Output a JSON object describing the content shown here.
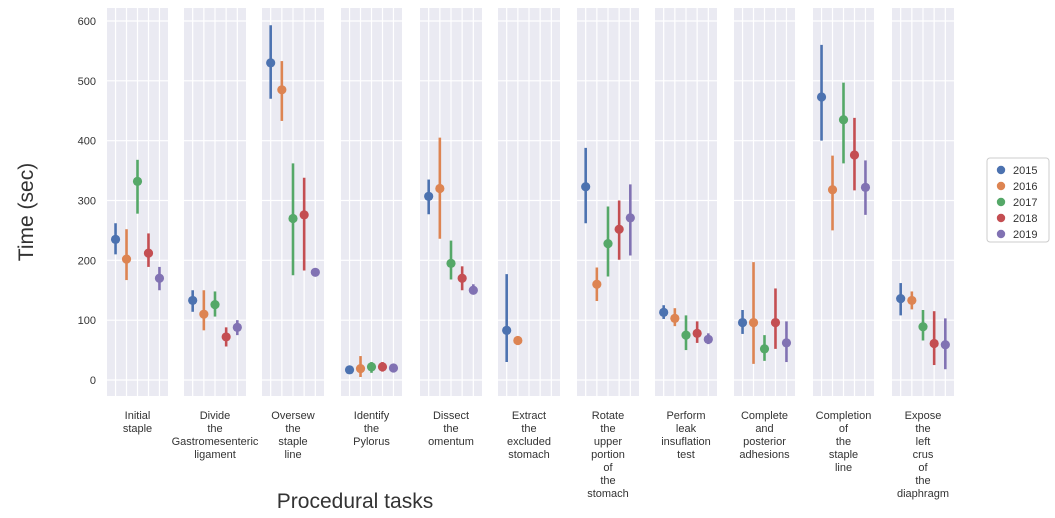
{
  "chart_data": {
    "type": "pointplot-facets",
    "ylabel": "Time (sec)",
    "xlabel": "Procedural tasks",
    "ylim": [
      -25,
      620
    ],
    "yticks": [
      0,
      100,
      200,
      300,
      400,
      500,
      600
    ],
    "grid": true,
    "legend_position": "right",
    "series": [
      {
        "name": "2015",
        "color": "#4c72b0"
      },
      {
        "name": "2016",
        "color": "#dd8452"
      },
      {
        "name": "2017",
        "color": "#55a868"
      },
      {
        "name": "2018",
        "color": "#c44e52"
      },
      {
        "name": "2019",
        "color": "#8172b3"
      }
    ],
    "tasks": [
      {
        "label": [
          "Initial",
          "staple"
        ],
        "points": [
          [
            235,
            210,
            262
          ],
          [
            202,
            167,
            252
          ],
          [
            332,
            278,
            368
          ],
          [
            212,
            189,
            245
          ],
          [
            170,
            150,
            189
          ]
        ]
      },
      {
        "label": [
          "Divide",
          "the",
          "Gastromesenteric",
          "ligament"
        ],
        "points": [
          [
            133,
            114,
            150
          ],
          [
            110,
            83,
            150
          ],
          [
            126,
            106,
            148
          ],
          [
            72,
            56,
            88
          ],
          [
            88,
            75,
            100
          ]
        ]
      },
      {
        "label": [
          "Oversew",
          "the",
          "staple",
          "line"
        ],
        "points": [
          [
            530,
            470,
            593
          ],
          [
            485,
            433,
            533
          ],
          [
            270,
            175,
            362
          ],
          [
            276,
            183,
            338
          ],
          [
            180,
            null,
            null
          ]
        ]
      },
      {
        "label": [
          "Identify",
          "the",
          "Pylorus"
        ],
        "points": [
          [
            17,
            13,
            21
          ],
          [
            19,
            5,
            40
          ],
          [
            22,
            12,
            30
          ],
          [
            22,
            14,
            30
          ],
          [
            20,
            14,
            26
          ]
        ]
      },
      {
        "label": [
          "Dissect",
          "the",
          "omentum"
        ],
        "points": [
          [
            307,
            277,
            335
          ],
          [
            320,
            236,
            405
          ],
          [
            195,
            168,
            233
          ],
          [
            170,
            150,
            190
          ],
          [
            150,
            143,
            160
          ]
        ]
      },
      {
        "label": [
          "Extract",
          "the",
          "excluded",
          "stomach"
        ],
        "points": [
          [
            83,
            30,
            177
          ],
          [
            66,
            null,
            null
          ],
          null,
          null,
          null
        ]
      },
      {
        "label": [
          "Rotate",
          "the",
          "upper",
          "portion",
          "of",
          "the",
          "stomach"
        ],
        "points": [
          [
            323,
            262,
            388
          ],
          [
            160,
            132,
            188
          ],
          [
            228,
            173,
            290
          ],
          [
            252,
            201,
            300
          ],
          [
            271,
            208,
            327
          ]
        ]
      },
      {
        "label": [
          "Perform",
          "leak",
          "insuflation",
          "test"
        ],
        "points": [
          [
            113,
            102,
            125
          ],
          [
            103,
            90,
            120
          ],
          [
            75,
            50,
            108
          ],
          [
            78,
            62,
            98
          ],
          [
            68,
            60,
            78
          ]
        ]
      },
      {
        "label": [
          "Complete",
          "and",
          "posterior",
          "adhesions"
        ],
        "points": [
          [
            96,
            77,
            117
          ],
          [
            96,
            27,
            197
          ],
          [
            52,
            32,
            75
          ],
          [
            96,
            52,
            153
          ],
          [
            62,
            30,
            98
          ]
        ]
      },
      {
        "label": [
          "Completion",
          "of",
          "the",
          "staple",
          "line"
        ],
        "points": [
          [
            473,
            400,
            560
          ],
          [
            318,
            250,
            375
          ],
          [
            435,
            362,
            497
          ],
          [
            376,
            317,
            438
          ],
          [
            322,
            276,
            367
          ]
        ]
      },
      {
        "label": [
          "Expose",
          "the",
          "left",
          "crus",
          "of",
          "the",
          "diaphragm"
        ],
        "points": [
          [
            136,
            108,
            162
          ],
          [
            133,
            118,
            148
          ],
          [
            89,
            66,
            117
          ],
          [
            61,
            25,
            115
          ],
          [
            59,
            18,
            103
          ]
        ]
      }
    ]
  }
}
